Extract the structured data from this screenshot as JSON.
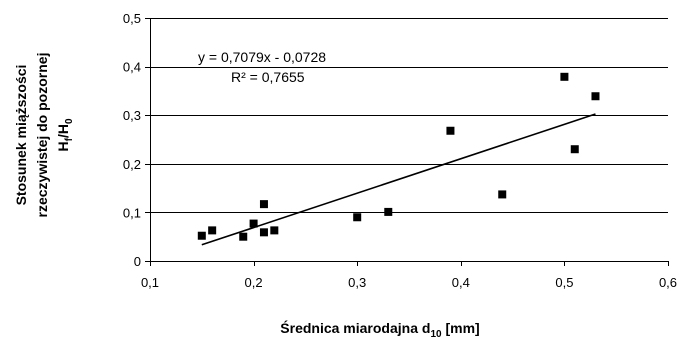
{
  "chart_data": {
    "type": "scatter",
    "x_label": {
      "main": "Średnica miarodajna d",
      "sub": "10",
      "unit": " [mm]"
    },
    "y_label": {
      "line1": "Stosunek miąższości",
      "line2": "rzeczywistej do pozornej",
      "line3": {
        "a": "H",
        "a_sub": "f",
        "slash": "/H",
        "b_sub": "0"
      }
    },
    "xlim": [
      0.1,
      0.6
    ],
    "ylim": [
      0,
      0.5
    ],
    "x_ticks": [
      0.1,
      0.2,
      0.3,
      0.4,
      0.5,
      0.6
    ],
    "y_ticks": [
      0,
      0.1,
      0.2,
      0.3,
      0.4,
      0.5
    ],
    "x_tick_labels": [
      "0,1",
      "0,2",
      "0,3",
      "0,4",
      "0,5",
      "0,6"
    ],
    "y_tick_labels": [
      "0",
      "0,1",
      "0,2",
      "0,3",
      "0,4",
      "0,5"
    ],
    "horizontal_grid": true,
    "points": [
      {
        "x": 0.15,
        "y": 0.052
      },
      {
        "x": 0.16,
        "y": 0.063
      },
      {
        "x": 0.19,
        "y": 0.05
      },
      {
        "x": 0.2,
        "y": 0.077
      },
      {
        "x": 0.21,
        "y": 0.117
      },
      {
        "x": 0.21,
        "y": 0.059
      },
      {
        "x": 0.22,
        "y": 0.063
      },
      {
        "x": 0.3,
        "y": 0.09
      },
      {
        "x": 0.33,
        "y": 0.101
      },
      {
        "x": 0.39,
        "y": 0.268
      },
      {
        "x": 0.44,
        "y": 0.137
      },
      {
        "x": 0.5,
        "y": 0.379
      },
      {
        "x": 0.51,
        "y": 0.23
      },
      {
        "x": 0.53,
        "y": 0.339
      }
    ],
    "trendline": {
      "slope": 0.7079,
      "intercept": -0.0728,
      "x_range": [
        0.15,
        0.53
      ]
    },
    "equation": "y = 0,7079x - 0,0728",
    "r_squared": "R² = 0,7655",
    "marker_color": "#000000",
    "line_color": "#000000"
  }
}
